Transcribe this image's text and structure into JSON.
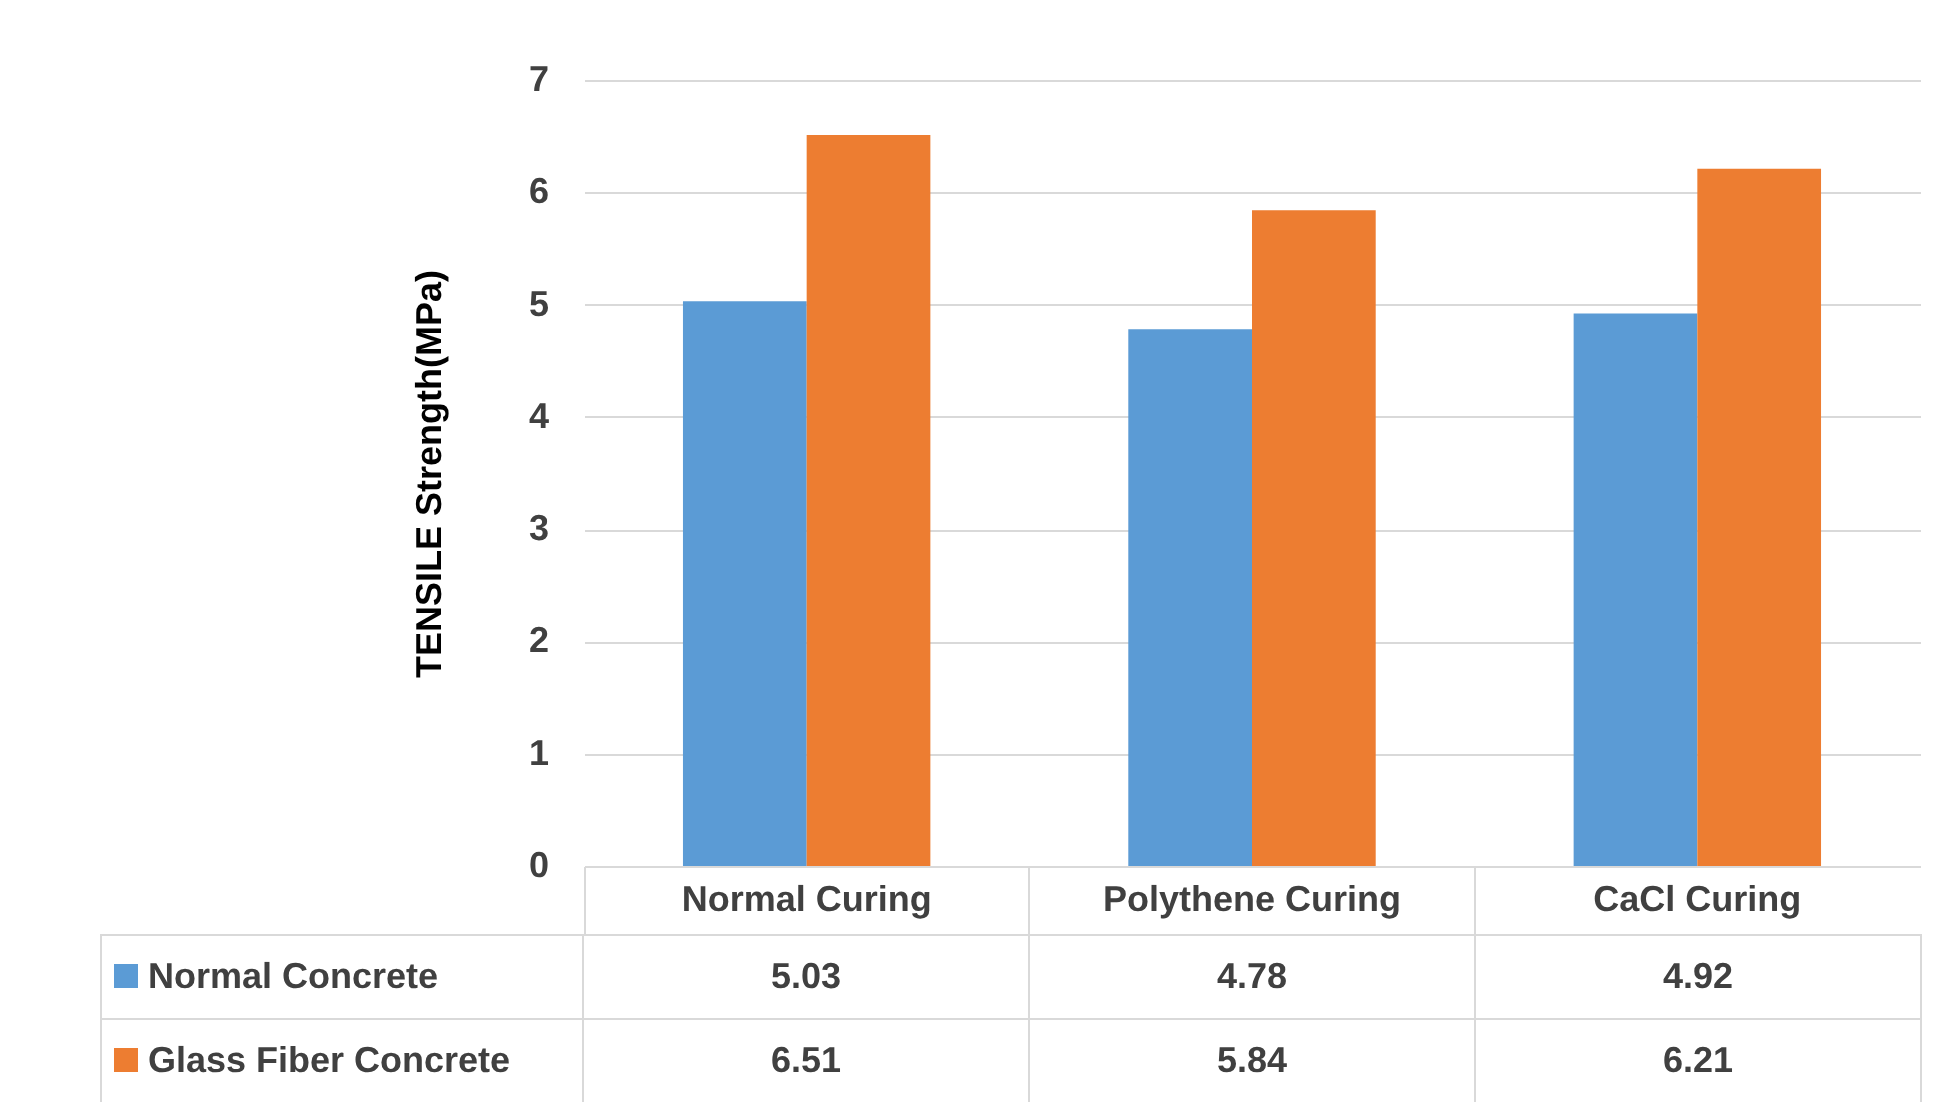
{
  "chart_data": {
    "type": "bar",
    "ylabel": "TENSILE Strength(MPa)",
    "categories": [
      "Normal Curing",
      "Polythene Curing",
      "CaCl Curing"
    ],
    "series": [
      {
        "name": "Normal Concrete",
        "color": "#5b9bd5",
        "values": [
          5.03,
          4.78,
          4.92
        ]
      },
      {
        "name": "Glass Fiber Concrete",
        "color": "#ed7d31",
        "values": [
          6.51,
          5.84,
          6.21
        ]
      }
    ],
    "ylim": [
      0,
      7
    ],
    "yticks": [
      0,
      1,
      2,
      3,
      4,
      5,
      6,
      7
    ],
    "grid": "y",
    "legend": "bottom",
    "data_labels": true
  }
}
